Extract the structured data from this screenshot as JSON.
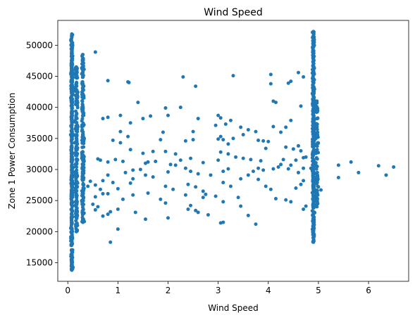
{
  "chart_data": {
    "type": "scatter",
    "title": "Wind Speed",
    "xlabel": "Wind Speed",
    "ylabel": "Zone 1 Power Consumption",
    "xlim": [
      -0.2,
      6.8
    ],
    "ylim": [
      12000,
      54000
    ],
    "xticks": [
      0,
      1,
      2,
      3,
      4,
      5,
      6
    ],
    "yticks": [
      15000,
      20000,
      25000,
      30000,
      35000,
      40000,
      45000,
      50000
    ],
    "grid": false,
    "legend": "none",
    "color": "#1f77b4",
    "clusters": [
      {
        "x_center": 0.08,
        "x_spread": 0.025,
        "y_min": 13800,
        "y_max": 51800,
        "count": 420
      },
      {
        "x_center": 0.17,
        "x_spread": 0.04,
        "y_min": 20000,
        "y_max": 46500,
        "count": 220
      },
      {
        "x_center": 0.3,
        "x_spread": 0.035,
        "y_min": 21500,
        "y_max": 48500,
        "count": 200
      },
      {
        "x_center": 4.9,
        "x_spread": 0.03,
        "y_min": 18300,
        "y_max": 52200,
        "count": 380
      },
      {
        "x_center": 4.97,
        "x_spread": 0.04,
        "y_min": 24000,
        "y_max": 41000,
        "count": 90
      }
    ],
    "points": [
      [
        0.55,
        48900
      ],
      [
        0.8,
        44300
      ],
      [
        1.2,
        44100
      ],
      [
        1.22,
        44000
      ],
      [
        2.3,
        44900
      ],
      [
        2.55,
        43400
      ],
      [
        3.3,
        45100
      ],
      [
        4.05,
        45300
      ],
      [
        4.05,
        43800
      ],
      [
        4.4,
        43900
      ],
      [
        4.45,
        44200
      ],
      [
        4.6,
        45600
      ],
      [
        4.7,
        44900
      ],
      [
        4.65,
        40200
      ],
      [
        4.1,
        41000
      ],
      [
        4.15,
        40800
      ],
      [
        1.4,
        40800
      ],
      [
        1.95,
        39900
      ],
      [
        2.25,
        40000
      ],
      [
        0.7,
        38200
      ],
      [
        0.8,
        38400
      ],
      [
        1.05,
        38700
      ],
      [
        1.5,
        38200
      ],
      [
        1.65,
        38600
      ],
      [
        2.6,
        38200
      ],
      [
        3.0,
        38700
      ],
      [
        3.05,
        38300
      ],
      [
        3.15,
        37300
      ],
      [
        3.25,
        37900
      ],
      [
        2.95,
        37100
      ],
      [
        1.25,
        37500
      ],
      [
        2.0,
        38700
      ],
      [
        3.6,
        36400
      ],
      [
        3.45,
        36800
      ],
      [
        3.75,
        36100
      ],
      [
        4.25,
        36000
      ],
      [
        4.35,
        36800
      ],
      [
        4.45,
        37900
      ],
      [
        4.1,
        36900
      ],
      [
        1.05,
        36100
      ],
      [
        1.9,
        36000
      ],
      [
        2.5,
        36100
      ],
      [
        3.05,
        35300
      ],
      [
        3.1,
        34800
      ],
      [
        3.3,
        35000
      ],
      [
        3.5,
        35600
      ],
      [
        1.2,
        35300
      ],
      [
        1.25,
        33200
      ],
      [
        1.7,
        32900
      ],
      [
        1.95,
        32900
      ],
      [
        1.85,
        34800
      ],
      [
        2.15,
        32500
      ],
      [
        2.5,
        34800
      ],
      [
        2.35,
        34600
      ],
      [
        3.0,
        34900
      ],
      [
        3.2,
        34100
      ],
      [
        3.8,
        34700
      ],
      [
        3.9,
        34600
      ],
      [
        4.0,
        34500
      ],
      [
        3.95,
        33400
      ],
      [
        4.35,
        33600
      ],
      [
        4.5,
        33300
      ],
      [
        4.6,
        33800
      ],
      [
        4.65,
        33000
      ],
      [
        1.05,
        34300
      ],
      [
        0.9,
        34700
      ],
      [
        1.5,
        32600
      ],
      [
        0.6,
        31700
      ],
      [
        0.65,
        31500
      ],
      [
        0.8,
        31200
      ],
      [
        0.95,
        31600
      ],
      [
        1.1,
        31300
      ],
      [
        1.55,
        31000
      ],
      [
        1.6,
        31200
      ],
      [
        1.75,
        31300
      ],
      [
        2.05,
        30800
      ],
      [
        2.25,
        31500
      ],
      [
        2.45,
        31800
      ],
      [
        2.7,
        31100
      ],
      [
        3.0,
        31500
      ],
      [
        3.05,
        32800
      ],
      [
        3.2,
        32500
      ],
      [
        3.35,
        32000
      ],
      [
        3.5,
        31800
      ],
      [
        3.65,
        31600
      ],
      [
        3.85,
        31400
      ],
      [
        4.3,
        31600
      ],
      [
        4.45,
        30700
      ],
      [
        4.55,
        31500
      ],
      [
        4.7,
        31900
      ],
      [
        4.75,
        32000
      ],
      [
        4.85,
        30200
      ],
      [
        1.15,
        29500
      ],
      [
        1.3,
        29900
      ],
      [
        1.45,
        30000
      ],
      [
        1.55,
        29100
      ],
      [
        2.0,
        29600
      ],
      [
        2.15,
        30700
      ],
      [
        2.35,
        30200
      ],
      [
        2.45,
        29700
      ],
      [
        2.6,
        29300
      ],
      [
        2.85,
        29100
      ],
      [
        3.1,
        29700
      ],
      [
        3.2,
        30100
      ],
      [
        3.7,
        29700
      ],
      [
        3.8,
        30200
      ],
      [
        3.9,
        29900
      ],
      [
        4.1,
        30100
      ],
      [
        4.2,
        30400
      ],
      [
        4.25,
        30800
      ],
      [
        4.4,
        30100
      ],
      [
        4.6,
        29500
      ],
      [
        4.7,
        30200
      ],
      [
        5.4,
        30700
      ],
      [
        5.4,
        28700
      ],
      [
        5.65,
        31200
      ],
      [
        5.8,
        29500
      ],
      [
        6.2,
        30600
      ],
      [
        6.35,
        29100
      ],
      [
        6.5,
        30400
      ],
      [
        0.8,
        29100
      ],
      [
        0.7,
        28200
      ],
      [
        0.55,
        27500
      ],
      [
        0.4,
        27300
      ],
      [
        0.45,
        28100
      ],
      [
        0.65,
        26800
      ],
      [
        0.7,
        26100
      ],
      [
        0.9,
        27900
      ],
      [
        1.0,
        26900
      ],
      [
        1.3,
        28500
      ],
      [
        1.25,
        27800
      ],
      [
        1.7,
        28800
      ],
      [
        1.95,
        27300
      ],
      [
        2.1,
        26800
      ],
      [
        2.4,
        27600
      ],
      [
        2.55,
        27200
      ],
      [
        2.7,
        26500
      ],
      [
        3.1,
        27900
      ],
      [
        3.25,
        27300
      ],
      [
        3.45,
        28500
      ],
      [
        3.6,
        29100
      ],
      [
        3.8,
        28400
      ],
      [
        3.95,
        27300
      ],
      [
        4.05,
        26800
      ],
      [
        4.55,
        27000
      ],
      [
        4.65,
        27600
      ],
      [
        4.7,
        28200
      ],
      [
        5.05,
        26700
      ],
      [
        5.0,
        27200
      ],
      [
        0.55,
        25600
      ],
      [
        0.8,
        26100
      ],
      [
        1.1,
        25200
      ],
      [
        1.3,
        25900
      ],
      [
        1.6,
        26200
      ],
      [
        1.85,
        25200
      ],
      [
        1.95,
        24600
      ],
      [
        2.35,
        25900
      ],
      [
        2.45,
        24200
      ],
      [
        2.7,
        25500
      ],
      [
        2.75,
        26000
      ],
      [
        2.95,
        25700
      ],
      [
        3.1,
        24800
      ],
      [
        3.45,
        24100
      ],
      [
        3.4,
        25500
      ],
      [
        4.15,
        25300
      ],
      [
        4.35,
        25100
      ],
      [
        4.45,
        24800
      ],
      [
        4.7,
        23600
      ],
      [
        4.75,
        24100
      ],
      [
        0.5,
        24400
      ],
      [
        0.6,
        24000
      ],
      [
        0.55,
        23500
      ],
      [
        0.7,
        22500
      ],
      [
        0.8,
        22800
      ],
      [
        0.85,
        23200
      ],
      [
        1.0,
        23600
      ],
      [
        1.35,
        23100
      ],
      [
        1.55,
        22000
      ],
      [
        2.0,
        22200
      ],
      [
        2.4,
        23600
      ],
      [
        2.55,
        23400
      ],
      [
        2.6,
        23100
      ],
      [
        2.8,
        22700
      ],
      [
        3.05,
        21400
      ],
      [
        3.1,
        21500
      ],
      [
        3.6,
        22600
      ],
      [
        3.75,
        21200
      ],
      [
        1.0,
        20400
      ],
      [
        0.85,
        18300
      ]
    ]
  }
}
